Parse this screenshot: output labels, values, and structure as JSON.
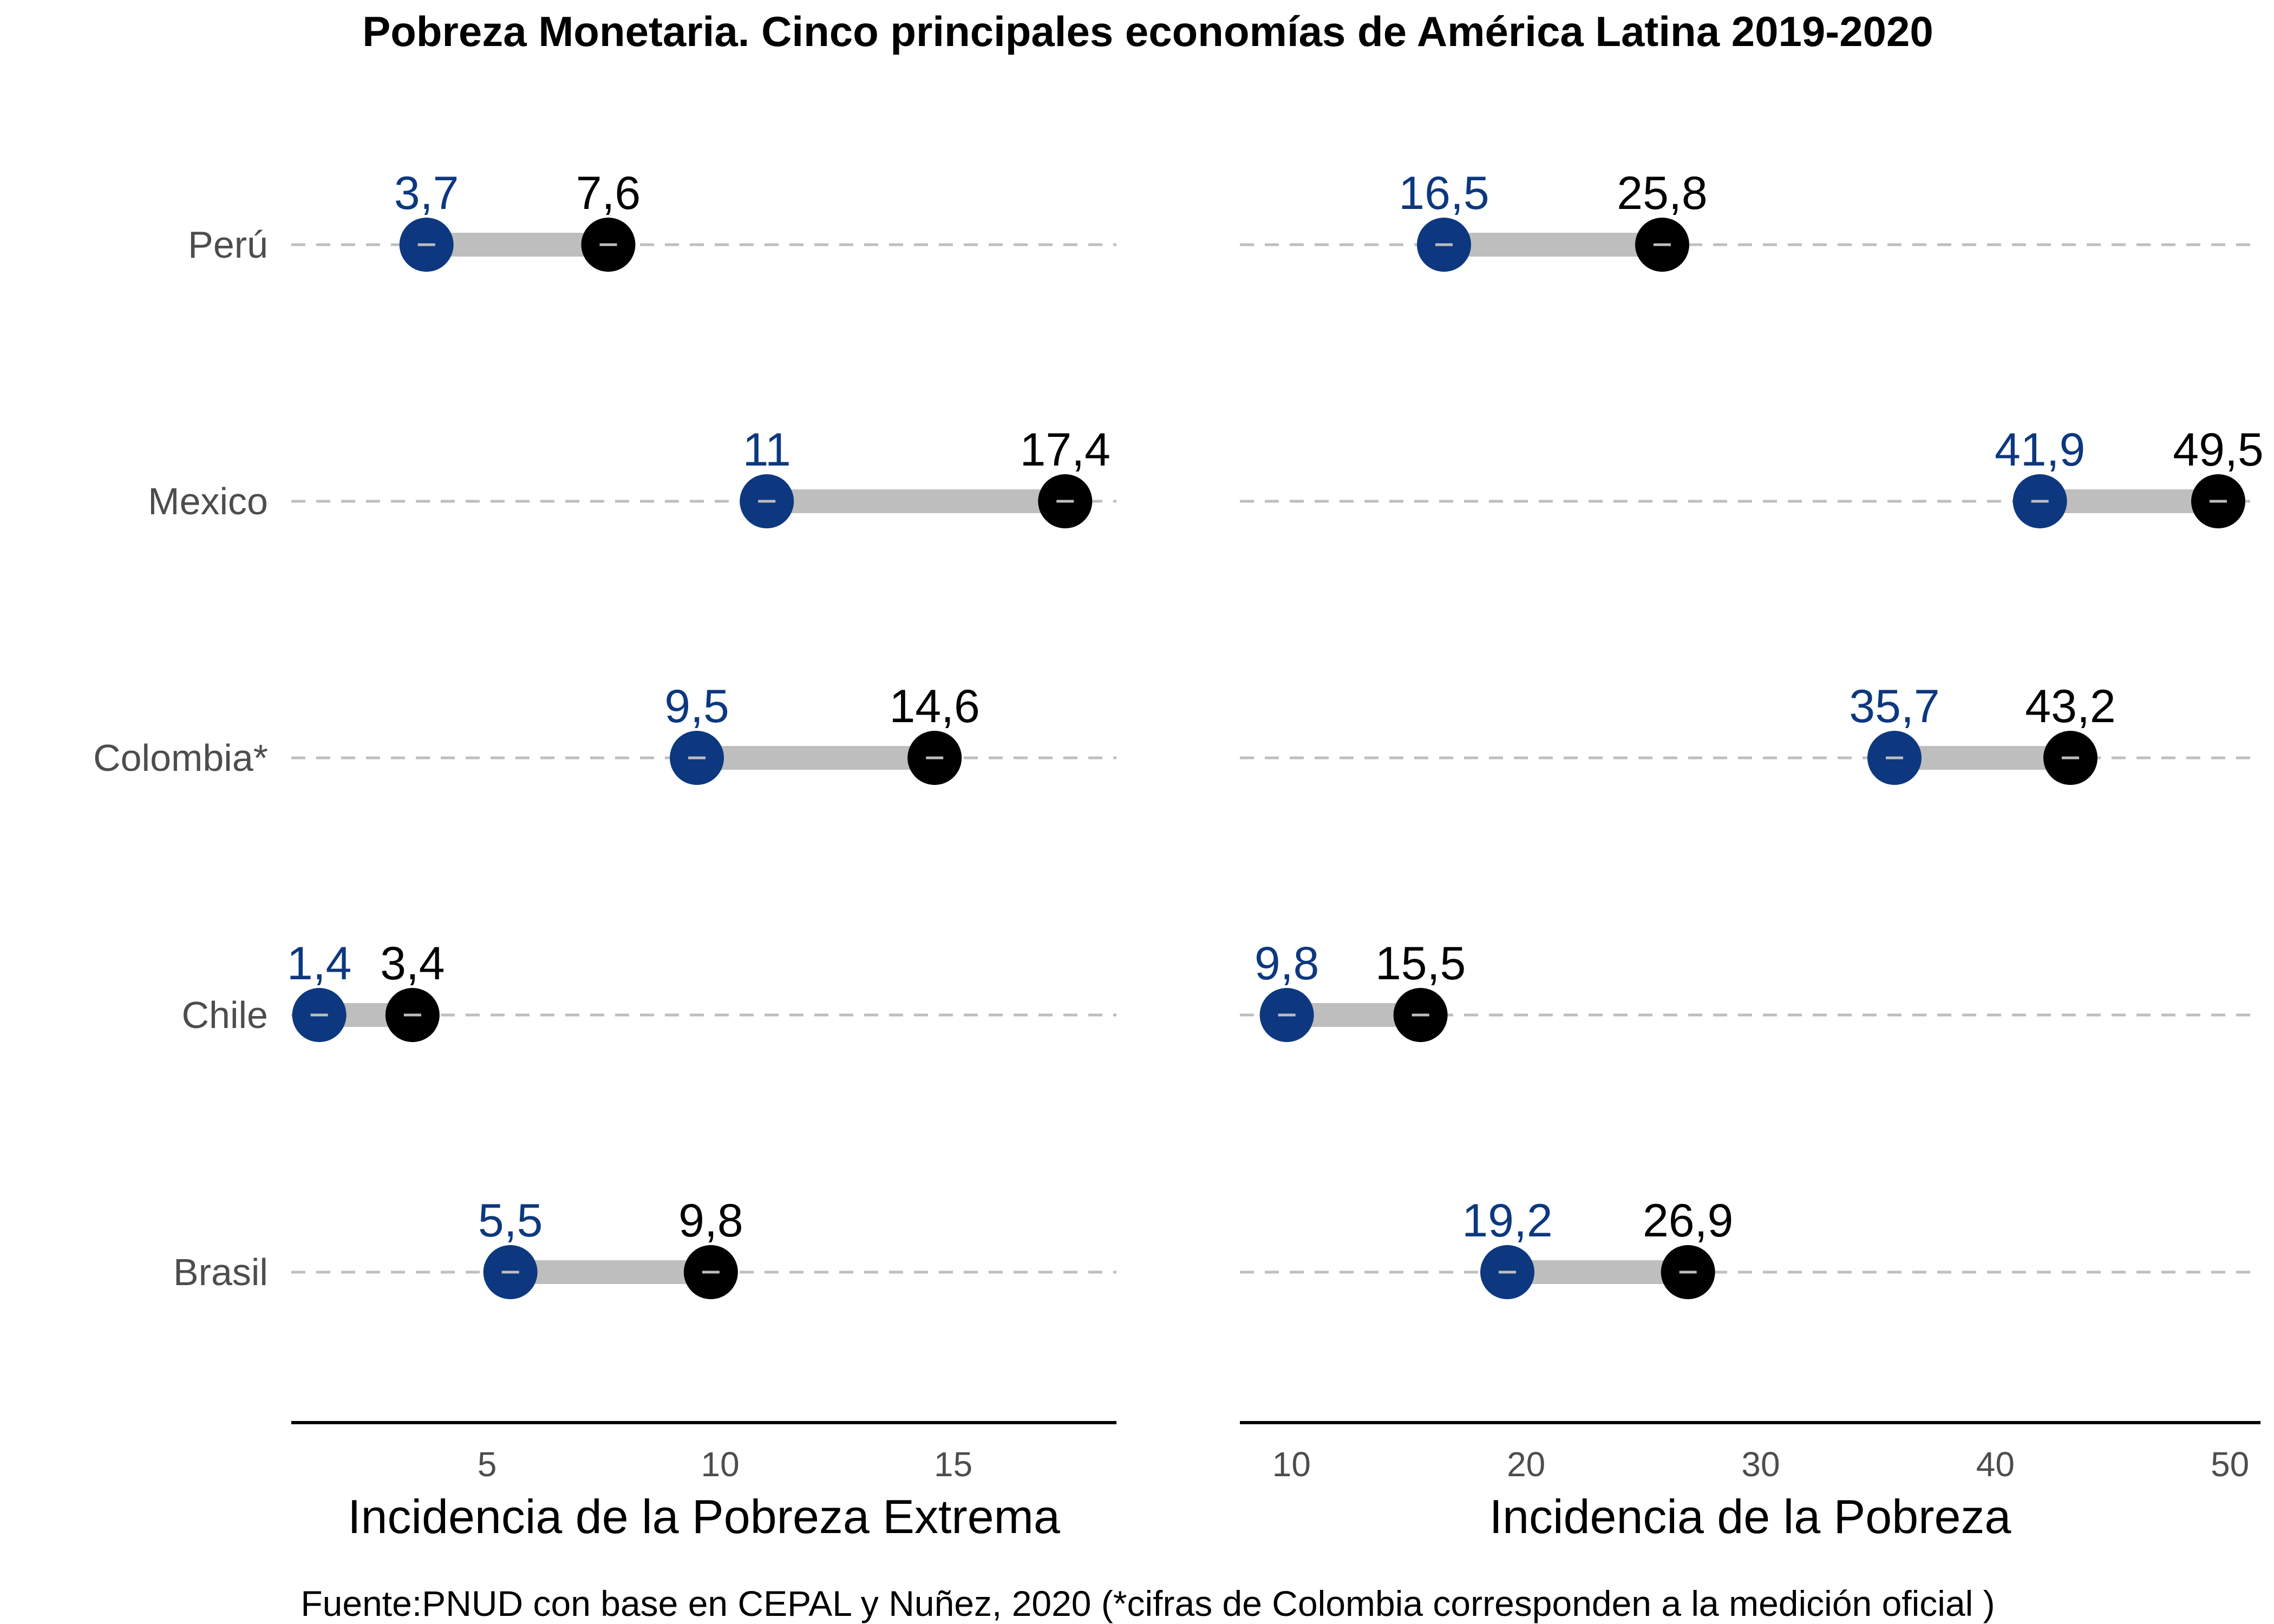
{
  "title": "Pobreza Monetaria. Cinco principales economías de América Latina 2019-2020",
  "caption": "Fuente:PNUD con base en CEPAL y Nuñez, 2020 (*cifras de Colombia corresponden a la medición oficial )",
  "colors": {
    "start": "#0d3880",
    "end": "#000000",
    "segment": "#bebebe",
    "gridline": "#bebebe",
    "axis": "#000000"
  },
  "chart_data": [
    {
      "type": "dumbbell",
      "xlabel": "Incidencia de la Pobreza Extrema",
      "xticks": [
        5,
        10,
        15
      ],
      "xlim": [
        0.8,
        18.5
      ],
      "categories": [
        "Perú",
        "Mexico",
        "Colombia*",
        "Chile",
        "Brasil"
      ],
      "series": [
        {
          "values": [
            3.7,
            11,
            9.5,
            1.4,
            5.5
          ],
          "labels": [
            "3,7",
            "11",
            "9,5",
            "1,4",
            "5,5"
          ]
        },
        {
          "values": [
            7.6,
            17.4,
            14.6,
            3.4,
            9.8
          ],
          "labels": [
            "7,6",
            "17,4",
            "14,6",
            "3,4",
            "9,8"
          ]
        }
      ]
    },
    {
      "type": "dumbbell",
      "xlabel": "Incidencia de la Pobreza",
      "xticks": [
        10,
        20,
        30,
        40,
        50
      ],
      "xlim": [
        7.8,
        51.3
      ],
      "categories": [
        "Perú",
        "Mexico",
        "Colombia*",
        "Chile",
        "Brasil"
      ],
      "series": [
        {
          "values": [
            16.5,
            41.9,
            35.7,
            9.8,
            19.2
          ],
          "labels": [
            "16,5",
            "41,9",
            "35,7",
            "9,8",
            "19,2"
          ]
        },
        {
          "values": [
            25.8,
            49.5,
            43.2,
            15.5,
            26.9
          ],
          "labels": [
            "25,8",
            "49,5",
            "43,2",
            "15,5",
            "26,9"
          ]
        }
      ]
    }
  ]
}
